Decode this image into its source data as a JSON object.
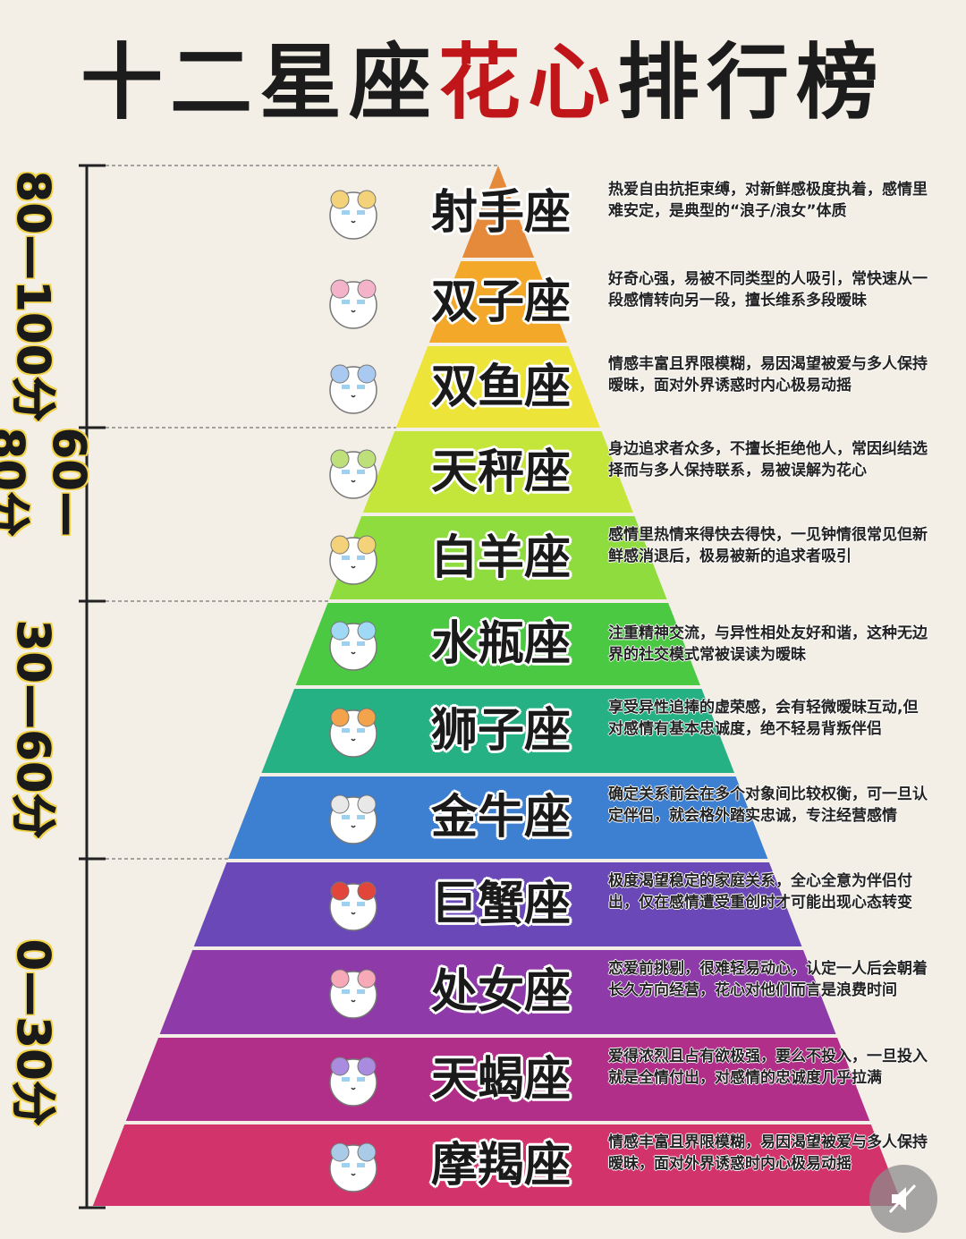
{
  "title": {
    "part1": "十二星座",
    "highlight": "花心",
    "part2": "排行榜"
  },
  "bands": [
    {
      "label": "80—100分"
    },
    {
      "label": "60—80分"
    },
    {
      "label": "30—60分"
    },
    {
      "label": "0—30分"
    }
  ],
  "tiers": [
    {
      "name": "射手座",
      "color": "#e58a3b",
      "desc": "热爱自由抗拒束缚，对新鲜感极度执着，感情里难安定，是典型的“浪子/浪女”体质"
    },
    {
      "name": "双子座",
      "color": "#f4a82a",
      "desc": "好奇心强，易被不同类型的人吸引，常快速从一段感情转向另一段，擅长维系多段暧昧"
    },
    {
      "name": "双鱼座",
      "color": "#ede43a",
      "desc": "情感丰富且界限模糊，易因渴望被爱与多人保持暧昧，面对外界诱惑时内心极易动摇"
    },
    {
      "name": "天秤座",
      "color": "#c4e53a",
      "desc": "身边追求者众多，不擅长拒绝他人，常因纠结选择而与多人保持联系，易被误解为花心"
    },
    {
      "name": "白羊座",
      "color": "#8fdc3f",
      "desc": "感情里热情来得快去得快，一见钟情很常见但新鲜感消退后，极易被新的追求者吸引"
    },
    {
      "name": "水瓶座",
      "color": "#4cc943",
      "desc": "注重精神交流，与异性相处友好和谐，这种无边界的社交模式常被误读为暧昧"
    },
    {
      "name": "狮子座",
      "color": "#26b184",
      "desc": "享受异性追捧的虚荣感，会有轻微暧昧互动,但对感情有基本忠诚度，绝不轻易背叛伴侣"
    },
    {
      "name": "金牛座",
      "color": "#3d7fd0",
      "desc": "确定关系前会在多个对象间比较权衡，可一旦认定伴侣，就会格外踏实忠诚，专注经营感情"
    },
    {
      "name": "巨蟹座",
      "color": "#6a48b8",
      "desc": "极度渴望稳定的家庭关系，全心全意为伴侣付出，仅在感情遭受重创时才可能出现心态转变"
    },
    {
      "name": "处女座",
      "color": "#8e3aa8",
      "desc": "恋爱前挑剔，很难轻易动心，认定一人后会朝着长久方向经营，花心对他们而言是浪费时间"
    },
    {
      "name": "天蝎座",
      "color": "#b12f88",
      "desc": "爱得浓烈且占有欲极强，要么不投入，一旦投入就是全情付出，对感情的忠诚度几乎拉满"
    },
    {
      "name": "摩羯座",
      "color": "#d2336a",
      "desc": "情感丰富且界限模糊，易因渴望被爱与多人保持暧昧，面对外界诱惑时内心极易动摇"
    }
  ],
  "icons": [
    "sagittarius-mascot-icon",
    "gemini-mascot-icon",
    "pisces-mascot-icon",
    "libra-mascot-icon",
    "aries-mascot-icon",
    "aquarius-mascot-icon",
    "leo-mascot-icon",
    "taurus-mascot-icon",
    "cancer-mascot-icon",
    "virgo-mascot-icon",
    "scorpio-mascot-icon",
    "capricorn-mascot-icon",
    "mute-icon"
  ]
}
